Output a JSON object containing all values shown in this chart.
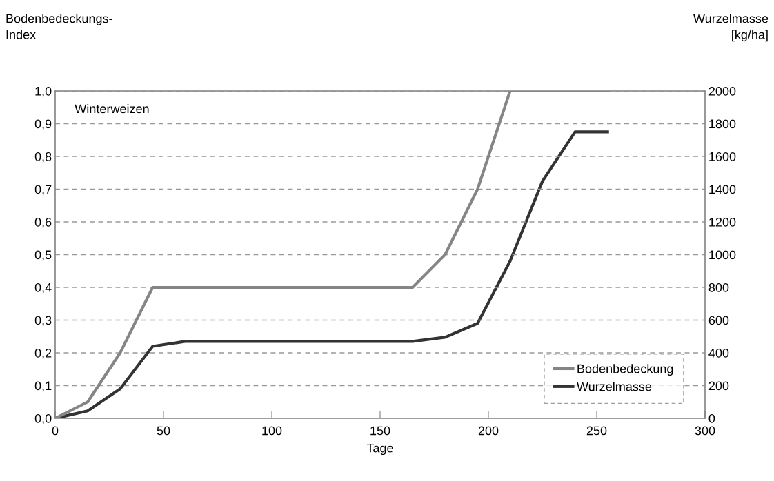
{
  "chart_data": {
    "type": "line",
    "xlabel": "Tage",
    "ylabel": "Bodenbedeckungs-\nIndex",
    "y2label": "Wurzelmasse\n[kg/ha]",
    "annotations": [
      "Winterweizen"
    ],
    "x": [
      0,
      15,
      30,
      45,
      60,
      75,
      90,
      105,
      120,
      135,
      150,
      165,
      180,
      195,
      210,
      225,
      240,
      255
    ],
    "series": [
      {
        "name": "Bodenbedeckung",
        "color": "#858585",
        "values": [
          0,
          0.05,
          0.2,
          0.4,
          0.4,
          0.4,
          0.4,
          0.4,
          0.4,
          0.4,
          0.4,
          0.4,
          0.5,
          0.7,
          1.0,
          1.0,
          1.0,
          1.0
        ]
      },
      {
        "name": "Wurzelmasse",
        "color": "#333333",
        "axis": "y2",
        "values": [
          0,
          45,
          180,
          440,
          470,
          470,
          470,
          470,
          470,
          470,
          470,
          470,
          495,
          580,
          960,
          1450,
          1750,
          1750
        ]
      }
    ],
    "xlim": [
      0,
      300
    ],
    "xticks": [
      0,
      50,
      100,
      150,
      200,
      250,
      300
    ],
    "ylim": [
      0,
      1
    ],
    "yticks": [
      {
        "value": 0,
        "label": "0,0"
      },
      {
        "value": 0.1,
        "label": "0,1"
      },
      {
        "value": 0.2,
        "label": "0,2"
      },
      {
        "value": 0.3,
        "label": "0,3"
      },
      {
        "value": 0.4,
        "label": "0,4"
      },
      {
        "value": 0.5,
        "label": "0,5"
      },
      {
        "value": 0.6,
        "label": "0,6"
      },
      {
        "value": 0.7,
        "label": "0,7"
      },
      {
        "value": 0.8,
        "label": "0,8"
      },
      {
        "value": 0.9,
        "label": "0,9"
      },
      {
        "value": 1.0,
        "label": "1,0"
      }
    ],
    "y2lim": [
      0,
      2000
    ],
    "y2ticks": [
      0,
      200,
      400,
      600,
      800,
      1000,
      1200,
      1400,
      1600,
      1800,
      2000
    ],
    "grid": "y",
    "legend": "bottom right",
    "marker": "none",
    "line_style": "solid"
  }
}
